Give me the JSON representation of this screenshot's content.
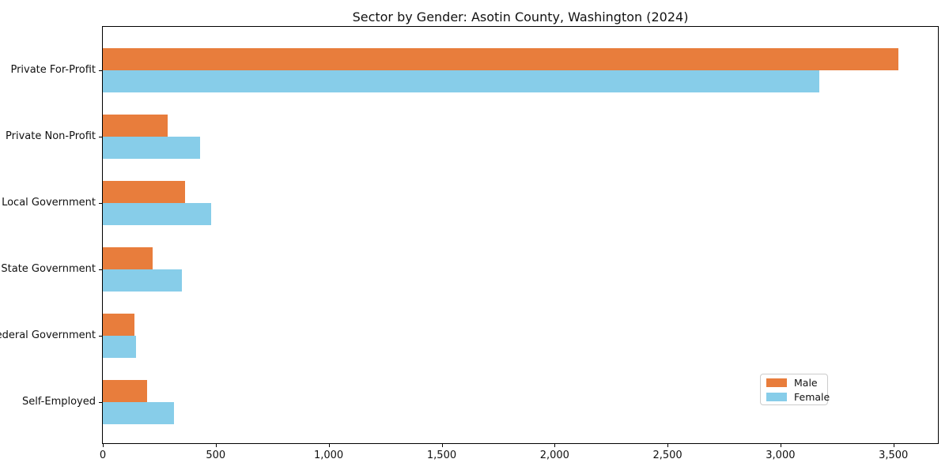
{
  "chart_data": {
    "type": "bar",
    "orientation": "horizontal",
    "title": "Sector by Gender: Asotin County, Washington (2024)",
    "categories": [
      "Private For-Profit",
      "Private Non-Profit",
      "Local Government",
      "State Government",
      "Federal Government",
      "Self-Employed"
    ],
    "series": [
      {
        "name": "Male",
        "color": "#e87d3c",
        "values": [
          3521,
          287,
          364,
          222,
          140,
          196
        ]
      },
      {
        "name": "Female",
        "color": "#87cde9",
        "values": [
          3173,
          430,
          481,
          350,
          147,
          315
        ]
      }
    ],
    "xlabel": "",
    "ylabel": "",
    "xlim": [
      0,
      3697
    ],
    "xticks": [
      0,
      500,
      1000,
      1500,
      2000,
      2500,
      3000,
      3500
    ],
    "xtick_labels": [
      "0",
      "500",
      "1,000",
      "1,500",
      "2,000",
      "2,500",
      "3,000",
      "3,500"
    ],
    "grid": false,
    "legend_position": "lower right"
  }
}
